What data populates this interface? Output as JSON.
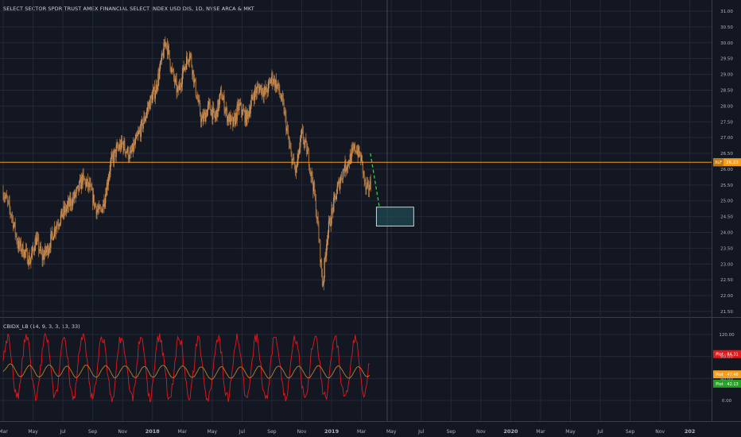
{
  "header": {
    "title": "SELECT SECTOR SPDR TRUST AMEX FINANCIAL SELECT INDEX USD DIS, 1D, NYSE ARCA & MKT"
  },
  "colors": {
    "background": "#131722",
    "grid": "#242838",
    "candle": "#c8874a",
    "price_line": "#f59d1c",
    "oscillator_main": "#e0191c",
    "oscillator_signal": "#b7832c",
    "forecast_arrow": "#2fcf4a",
    "target_box_fill": "#1f4a50",
    "target_box_stroke": "#d8e6ea",
    "axis_text": "#b2b5be"
  },
  "chart_data": [
    {
      "type": "candlestick",
      "title": "SELECT SECTOR SPDR TRUST AMEX FINANCIAL SELECT INDEX USD DIS, 1D, NYSE ARCA & MKT",
      "y_ticks": [
        "31.00",
        "30.50",
        "30.00",
        "29.50",
        "29.00",
        "28.50",
        "28.00",
        "27.50",
        "27.00",
        "26.50",
        "26.00",
        "25.50",
        "25.00",
        "24.50",
        "24.00",
        "23.50",
        "23.00",
        "22.50",
        "22.00",
        "21.50"
      ],
      "ylim": [
        21.2,
        31.3
      ],
      "x_ticks": [
        "Mar",
        "May",
        "Jul",
        "Sep",
        "Nov",
        "2018",
        "Mar",
        "May",
        "Jul",
        "Sep",
        "Nov",
        "2019",
        "Mar",
        "May",
        "Jul",
        "Sep",
        "Nov",
        "2020",
        "Mar",
        "May",
        "Jul",
        "Sep",
        "Nov",
        "202"
      ],
      "x_range_months": [
        0,
        48.2
      ],
      "series_close": [
        {
          "m": 0.0,
          "v": 25.3
        },
        {
          "m": 0.6,
          "v": 24.5
        },
        {
          "m": 1.0,
          "v": 23.6
        },
        {
          "m": 1.4,
          "v": 23.4
        },
        {
          "m": 1.8,
          "v": 23.1
        },
        {
          "m": 2.2,
          "v": 23.8
        },
        {
          "m": 2.6,
          "v": 23.2
        },
        {
          "m": 3.0,
          "v": 23.5
        },
        {
          "m": 3.5,
          "v": 24.2
        },
        {
          "m": 4.0,
          "v": 24.6
        },
        {
          "m": 4.6,
          "v": 25.0
        },
        {
          "m": 5.0,
          "v": 25.3
        },
        {
          "m": 5.3,
          "v": 25.7
        },
        {
          "m": 5.8,
          "v": 25.4
        },
        {
          "m": 6.2,
          "v": 24.8
        },
        {
          "m": 6.5,
          "v": 24.6
        },
        {
          "m": 6.8,
          "v": 25.1
        },
        {
          "m": 7.2,
          "v": 26.2
        },
        {
          "m": 7.6,
          "v": 26.6
        },
        {
          "m": 8.0,
          "v": 26.8
        },
        {
          "m": 8.5,
          "v": 26.4
        },
        {
          "m": 9.0,
          "v": 27.0
        },
        {
          "m": 9.4,
          "v": 27.5
        },
        {
          "m": 9.8,
          "v": 28.1
        },
        {
          "m": 10.2,
          "v": 28.5
        },
        {
          "m": 10.6,
          "v": 29.4
        },
        {
          "m": 10.9,
          "v": 30.1
        },
        {
          "m": 11.3,
          "v": 29.1
        },
        {
          "m": 11.7,
          "v": 28.4
        },
        {
          "m": 12.1,
          "v": 29.2
        },
        {
          "m": 12.5,
          "v": 29.7
        },
        {
          "m": 12.9,
          "v": 28.5
        },
        {
          "m": 13.3,
          "v": 27.5
        },
        {
          "m": 13.8,
          "v": 28.0
        },
        {
          "m": 14.2,
          "v": 27.6
        },
        {
          "m": 14.6,
          "v": 28.4
        },
        {
          "m": 15.0,
          "v": 27.7
        },
        {
          "m": 15.4,
          "v": 27.4
        },
        {
          "m": 15.8,
          "v": 28.0
        },
        {
          "m": 16.3,
          "v": 27.6
        },
        {
          "m": 16.8,
          "v": 28.4
        },
        {
          "m": 17.2,
          "v": 28.6
        },
        {
          "m": 17.6,
          "v": 28.4
        },
        {
          "m": 18.0,
          "v": 28.9
        },
        {
          "m": 18.4,
          "v": 28.6
        },
        {
          "m": 18.8,
          "v": 27.9
        },
        {
          "m": 19.2,
          "v": 26.6
        },
        {
          "m": 19.6,
          "v": 25.9
        },
        {
          "m": 20.0,
          "v": 27.1
        },
        {
          "m": 20.4,
          "v": 26.5
        },
        {
          "m": 20.8,
          "v": 25.4
        },
        {
          "m": 21.1,
          "v": 24.1
        },
        {
          "m": 21.4,
          "v": 22.3
        },
        {
          "m": 21.7,
          "v": 23.9
        },
        {
          "m": 22.0,
          "v": 24.6
        },
        {
          "m": 22.4,
          "v": 25.4
        },
        {
          "m": 22.8,
          "v": 26.0
        },
        {
          "m": 23.2,
          "v": 26.3
        },
        {
          "m": 23.6,
          "v": 26.7
        },
        {
          "m": 24.0,
          "v": 26.3
        },
        {
          "m": 24.3,
          "v": 25.3
        },
        {
          "m": 24.6,
          "v": 25.5
        }
      ],
      "current_price": 26.22,
      "price_label": "26.22",
      "price_prefix": "XLF",
      "forecast_arrow": {
        "from": {
          "m": 24.6,
          "v": 26.5
        },
        "to": {
          "m": 25.2,
          "v": 24.8
        }
      },
      "target_zone": {
        "m0": 25.0,
        "m1": 27.5,
        "v0": 24.2,
        "v1": 24.8
      }
    },
    {
      "type": "line",
      "title": "CBIDX_LB (14, 9, 3, 3, 13, 33)",
      "y_ticks": [
        "120.00",
        "80.00",
        "40.00",
        "0.00"
      ],
      "ylim": [
        -12,
        132
      ],
      "series": [
        {
          "name": "Plot",
          "label": "Plot",
          "value_text": "84.31",
          "color": "#e0191c"
        },
        {
          "name": "Plot",
          "label": "Plot",
          "value_text": "47.46",
          "color": "#f59d1c"
        },
        {
          "name": "Plot",
          "label": "Plot",
          "value_text": "42.13",
          "color": "#25a225"
        }
      ]
    }
  ]
}
